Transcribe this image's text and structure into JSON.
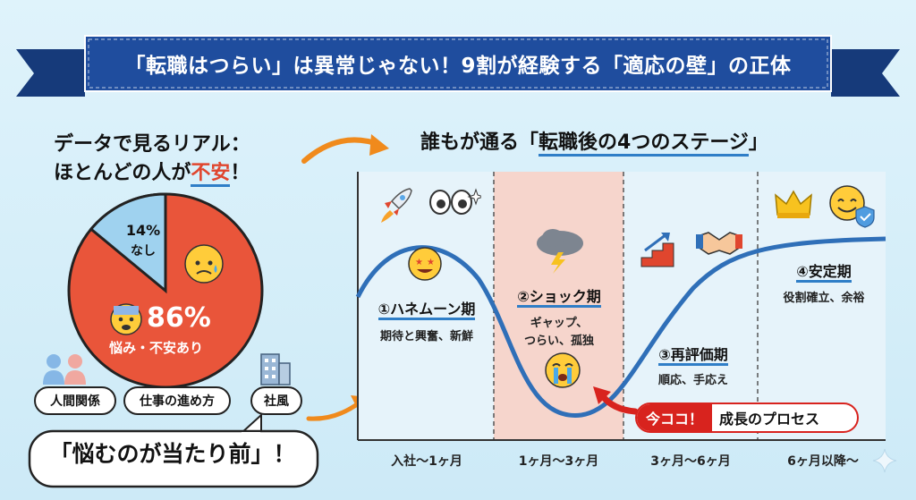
{
  "banner": {
    "title": "「転職はつらい」は異常じゃない！9割が経験する「適応の壁」の正体",
    "color": "#1f4d9e"
  },
  "left": {
    "heading_line1": "データで見るリアル：",
    "heading_line2_a": "ほとんどの人が",
    "heading_line2_b": "不安",
    "heading_line2_c": "！",
    "pie": {
      "slices": [
        {
          "label": "悩み・不安あり",
          "value": 86,
          "value_label": "86%",
          "color": "#e9553a"
        },
        {
          "label": "なし",
          "value": 14,
          "value_label": "14%",
          "color": "#9fd2ef"
        }
      ]
    },
    "tags": [
      "人間関係",
      "仕事の進め方",
      "社風"
    ],
    "callout": "「悩むのが当たり前」！"
  },
  "right": {
    "heading_a": "誰もが通る「",
    "heading_b": "転職後の4つのステージ",
    "heading_c": "」",
    "stages": [
      {
        "title": "①ハネムーン期",
        "desc": "期待と興奮、新鮮",
        "period": "入社〜1ヶ月"
      },
      {
        "title": "②ショック期",
        "desc1": "ギャップ、",
        "desc2": "つらい、孤独",
        "period": "1ヶ月〜3ヶ月"
      },
      {
        "title": "③再評価期",
        "desc": "順応、手応え",
        "period": "3ヶ月〜6ヶ月"
      },
      {
        "title": "④安定期",
        "desc": "役割確立、余裕",
        "period": "6ヶ月以降〜"
      }
    ],
    "now_label": "今ココ！",
    "process_label": "成長のプロセス"
  }
}
